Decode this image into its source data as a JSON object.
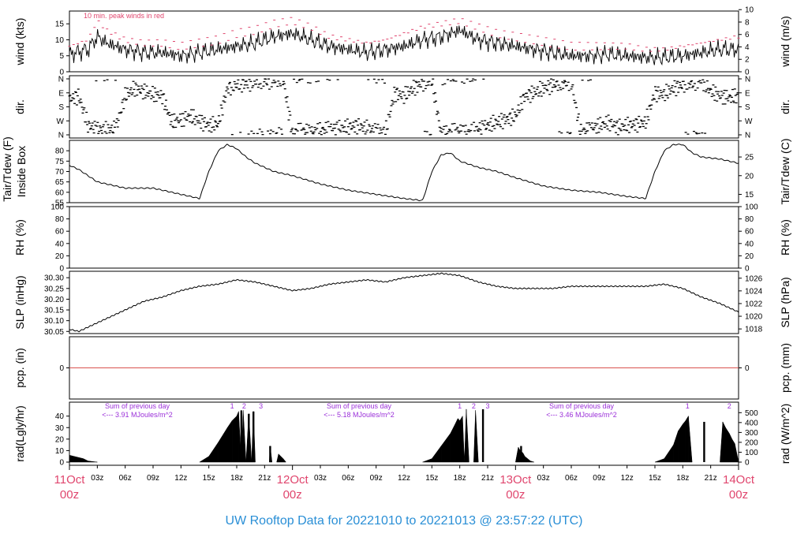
{
  "title": "UW Rooftop Data for  20221010  to  20221013 @ 23:57:22  (UTC)",
  "colors": {
    "peak": "#e0466e",
    "day_label": "#e0466e",
    "annotation": "#9b30d9",
    "title": "#2a8fd6",
    "series": "#000000",
    "zero_line": "#d9534f"
  },
  "time_axis": {
    "range_hours": [
      0,
      72
    ],
    "tick_labels": [
      "03z",
      "06z",
      "09z",
      "12z",
      "15z",
      "18z",
      "21z",
      "03z",
      "06z",
      "09z",
      "12z",
      "15z",
      "18z",
      "21z",
      "03z",
      "06z",
      "09z",
      "12z",
      "15z",
      "18z",
      "21z"
    ],
    "day_labels": [
      {
        "date": "11Oct",
        "time": "00z",
        "hour": 0
      },
      {
        "date": "12Oct",
        "time": "00z",
        "hour": 24
      },
      {
        "date": "13Oct",
        "time": "00z",
        "hour": 48
      },
      {
        "date": "14Oct",
        "time": "00z",
        "hour": 72
      }
    ]
  },
  "chart_data": [
    {
      "type": "line",
      "id": "wind",
      "ylabel_left": "wind (kts)",
      "ylabel_right": "wind (m/s)",
      "ylim": [
        0,
        19
      ],
      "left_ticks": [
        "0",
        "5",
        "10",
        "15"
      ],
      "right_ticks": [
        "0",
        "2",
        "4",
        "6",
        "8",
        "10"
      ],
      "annotation": "10 min. peak winds in red",
      "x_hours": [
        0,
        2,
        3,
        4,
        6,
        8,
        10,
        12,
        14,
        16,
        18,
        20,
        22,
        24,
        26,
        28,
        30,
        32,
        34,
        36,
        38,
        40,
        42,
        44,
        46,
        48,
        50,
        52,
        54,
        56,
        58,
        60,
        62,
        64,
        66,
        68,
        70,
        72
      ],
      "series": [
        {
          "values": [
            5.5,
            7,
            11,
            9,
            7,
            6,
            6,
            5,
            6,
            7,
            8,
            9,
            11,
            12,
            10,
            8,
            7,
            6,
            7,
            8,
            10,
            11,
            13,
            10,
            9,
            8,
            7,
            6,
            5,
            5,
            5.5,
            5,
            4.5,
            4.5,
            5,
            6,
            7,
            7
          ]
        }
      ],
      "peak_values": [
        8,
        10,
        16,
        13,
        10,
        9,
        9,
        8,
        9,
        10,
        12,
        13,
        15,
        16,
        14,
        11,
        10,
        9,
        10,
        12,
        14,
        15,
        16,
        14,
        12,
        11,
        10,
        9,
        8,
        8,
        8,
        8,
        7,
        7,
        8,
        9,
        10,
        11
      ]
    },
    {
      "type": "scatter",
      "id": "dir",
      "ylabel_left": "dir.",
      "ylabel_right": "dir.",
      "left_ticks": [
        "N",
        "E",
        "S",
        "W",
        "N"
      ],
      "right_ticks": [
        "N",
        "E",
        "S",
        "W",
        "N"
      ],
      "ylim": [
        0,
        360
      ],
      "x_hours": [
        0,
        1,
        2,
        3,
        4,
        5,
        6,
        7,
        8,
        9,
        10,
        11,
        12,
        13,
        14,
        15,
        16,
        17,
        18,
        19,
        20,
        21,
        22,
        23,
        24,
        25,
        26,
        27,
        28,
        29,
        30,
        31,
        32,
        33,
        34,
        35,
        36,
        37,
        38,
        39,
        40,
        41,
        42,
        43,
        44,
        45,
        46,
        47,
        48,
        49,
        50,
        51,
        52,
        53,
        54,
        55,
        56,
        57,
        58,
        59,
        60,
        61,
        62,
        63,
        64,
        65,
        66,
        67,
        68,
        69,
        70,
        71,
        72
      ],
      "values": [
        230,
        250,
        60,
        40,
        30,
        45,
        250,
        300,
        280,
        260,
        250,
        80,
        100,
        120,
        90,
        60,
        70,
        300,
        320,
        330,
        340,
        345,
        350,
        355,
        10,
        30,
        20,
        30,
        40,
        45,
        50,
        60,
        40,
        30,
        15,
        270,
        250,
        300,
        330,
        350,
        10,
        20,
        30,
        15,
        40,
        60,
        80,
        100,
        120,
        250,
        270,
        300,
        320,
        330,
        340,
        20,
        40,
        60,
        80,
        50,
        60,
        70,
        80,
        270,
        260,
        300,
        320,
        330,
        350,
        280,
        250,
        240,
        250
      ]
    },
    {
      "type": "line",
      "id": "temp",
      "ylabel_left": "Tair/Tdew (F)",
      "ylabel_left2": "Inside Box",
      "ylabel_right": "Tair/Tdew (C)",
      "ylim": [
        55,
        85
      ],
      "left_ticks": [
        "55",
        "60",
        "65",
        "70",
        "75",
        "80"
      ],
      "right_ticks": [
        "15",
        "20",
        "25"
      ],
      "x_hours": [
        0,
        1,
        2,
        3,
        4,
        6,
        9,
        12,
        14,
        15,
        16,
        17,
        18,
        19,
        20,
        21,
        22,
        24,
        27,
        30,
        33,
        36,
        38,
        39,
        40,
        41,
        42,
        44,
        46,
        48,
        51,
        54,
        57,
        60,
        62,
        63,
        64,
        65,
        66,
        67,
        68,
        70,
        72
      ],
      "series": [
        {
          "name": "Tair",
          "values": [
            73,
            71,
            68,
            65,
            64,
            62,
            62,
            59,
            57,
            70,
            80,
            83,
            81,
            77,
            74,
            72,
            70,
            68,
            64,
            61,
            59,
            57,
            56,
            70,
            78,
            79,
            75,
            72,
            70,
            67,
            63,
            61,
            60,
            58,
            57,
            70,
            80,
            83,
            83,
            79,
            77,
            76,
            74
          ]
        }
      ]
    },
    {
      "type": "line",
      "id": "rh",
      "ylabel_left": "RH (%)",
      "ylabel_right": "RH (%)",
      "ylim": [
        0,
        100
      ],
      "left_ticks": [
        "0",
        "20",
        "40",
        "60",
        "80",
        "100"
      ],
      "right_ticks": [
        "0",
        "20",
        "40",
        "60",
        "80",
        "100"
      ],
      "series": []
    },
    {
      "type": "line",
      "id": "slp",
      "ylabel_left": "SLP (inHg)",
      "ylabel_right": "SLP (hPa)",
      "ylim": [
        30.04,
        30.33
      ],
      "left_ticks": [
        "30.05",
        "30.10",
        "30.15",
        "30.20",
        "30.25",
        "30.30"
      ],
      "right_ticks": [
        "1018",
        "1020",
        "1022",
        "1024",
        "1026"
      ],
      "x_hours": [
        0,
        1,
        2,
        3,
        4,
        6,
        8,
        10,
        12,
        14,
        16,
        18,
        20,
        22,
        24,
        26,
        28,
        30,
        32,
        34,
        36,
        38,
        40,
        42,
        44,
        46,
        48,
        50,
        52,
        54,
        56,
        58,
        60,
        62,
        64,
        66,
        68,
        70,
        72
      ],
      "series": [
        {
          "values": [
            30.06,
            30.05,
            30.07,
            30.09,
            30.11,
            30.15,
            30.19,
            30.21,
            30.24,
            30.26,
            30.27,
            30.29,
            30.28,
            30.26,
            30.24,
            30.25,
            30.27,
            30.28,
            30.29,
            30.28,
            30.3,
            30.31,
            30.32,
            30.31,
            30.28,
            30.26,
            30.25,
            30.25,
            30.25,
            30.26,
            30.26,
            30.26,
            30.26,
            30.26,
            30.27,
            30.25,
            30.21,
            30.18,
            30.14
          ]
        }
      ]
    },
    {
      "type": "line",
      "id": "pcp",
      "ylabel_left": "pcp. (in)",
      "ylabel_right": "pcp. (mm)",
      "left_ticks": [
        "0"
      ],
      "right_ticks": [
        "0"
      ],
      "series": [
        {
          "values": [
            0,
            0
          ]
        }
      ]
    },
    {
      "type": "area",
      "id": "rad",
      "ylabel_left": "rad(Lgly/hr)",
      "ylabel_right": "rad (W/m^2)",
      "ylim": [
        0,
        48
      ],
      "left_ticks": [
        "0",
        "10",
        "20",
        "30",
        "40"
      ],
      "right_ticks": [
        "0",
        "100",
        "200",
        "300",
        "400",
        "500"
      ],
      "x_hours": [
        0,
        0.5,
        1,
        1.5,
        2,
        2.5,
        3,
        14,
        15,
        16,
        17,
        17.5,
        18,
        18.2,
        18.5,
        18.7,
        19,
        19.3,
        19.6,
        19.8,
        20,
        20.5,
        21,
        21.2,
        21.5,
        21.6,
        21.8,
        22,
        22.3,
        22.5,
        23,
        23.3,
        23.6,
        24,
        24.3,
        24.6,
        25,
        25.5,
        26,
        38,
        39,
        40,
        41,
        41.5,
        41.8,
        42,
        42.3,
        42.5,
        42.7,
        43,
        43.5,
        43.7,
        44,
        44.2,
        44.4,
        44.6,
        45,
        48,
        48.3,
        48.5,
        48.8,
        49,
        49.3,
        49.6,
        50,
        51,
        62,
        63,
        64,
        65,
        65.5,
        66,
        66.3,
        66.6,
        67,
        68,
        68.2,
        68.4,
        69,
        69.5,
        70,
        70.3,
        70.6,
        71,
        71.3,
        71.6,
        72
      ],
      "values": [
        6,
        5,
        4,
        3,
        1,
        0.5,
        0,
        0,
        5,
        17,
        30,
        36,
        40,
        44,
        0,
        45,
        0,
        42,
        0,
        44,
        0,
        0,
        0,
        0,
        0,
        14,
        0,
        0,
        0,
        7,
        3,
        0,
        0,
        0,
        0,
        0,
        0,
        0,
        0,
        0,
        3,
        14,
        25,
        33,
        38,
        36,
        40,
        0,
        46,
        0,
        0,
        45,
        0,
        0,
        0,
        0,
        0,
        0,
        13,
        10,
        8,
        5,
        3,
        1,
        0,
        0,
        0,
        0,
        3,
        15,
        27,
        33,
        36,
        40,
        0,
        0,
        0,
        0,
        0,
        0,
        0,
        35,
        30,
        25,
        20,
        16,
        0
      ],
      "markers": [
        "1",
        "2",
        "3",
        "1",
        "2",
        "3",
        "1",
        "2"
      ],
      "daily_sums": [
        {
          "label": "Sum of previous day",
          "value": "<--- 3.91 MJoules/m^2"
        },
        {
          "label": "Sum of previous day",
          "value": "<--- 5.18 MJoules/m^2"
        },
        {
          "label": "Sum of previous day",
          "value": "<--- 3.46 MJoules/m^2"
        }
      ]
    }
  ]
}
